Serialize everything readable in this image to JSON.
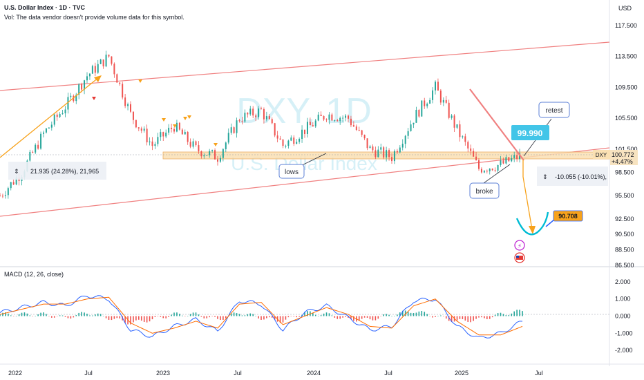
{
  "header": {
    "title": "U.S. Dollar Index · 1D · TVC",
    "volume_note": "Vol: The data vendor doesn't provide volume data for this symbol."
  },
  "currency": "USD",
  "watermark": {
    "symbol": "DXY, 1D",
    "name": "U.S. Dollar Index"
  },
  "macd_label": "MACD (12, 26, close)",
  "price_axis_labels": [
    "117.500",
    "113.500",
    "109.500",
    "105.500",
    "101.500",
    "98.500",
    "95.500",
    "92.500",
    "90.500",
    "88.500",
    "86.500"
  ],
  "macd_axis_labels": [
    "2.000",
    "1.000",
    "0.000",
    "-1.000",
    "-2.000"
  ],
  "time_axis_labels": [
    "2022",
    "Jul",
    "2023",
    "Jul",
    "2024",
    "Jul",
    "2025",
    "Jul"
  ],
  "last_price": {
    "symbol": "DXY",
    "price": "100.772",
    "change": "+4.47%"
  },
  "annotations": {
    "rise_measure": "21.935 (24.28%), 21,965",
    "drop_measure": "-10.055 (-10.01%),",
    "lows": "lows",
    "broke": "broke",
    "retest": "retest",
    "level_box": "99.990",
    "target_box": "90.708"
  },
  "colors": {
    "channel": "#f08080",
    "support_zone": "#fbe0b3",
    "support_border": "#e8a04a",
    "arrow": "#f7a21b",
    "candle_up": "#26a69a",
    "candle_down": "#ef5350",
    "macd_line": "#2962ff",
    "signal_line": "#ff6d00",
    "cup": "#00bcd4",
    "level_box": "#42c5e8",
    "target_box": "#f7a21b"
  },
  "chart_data": [
    {
      "type": "candlestick",
      "title": "U.S. Dollar Index · 1D · TVC",
      "x": [
        "2022-01",
        "2022-03",
        "2022-05",
        "2022-07",
        "2022-09",
        "2022-10",
        "2022-11",
        "2023-01",
        "2023-03",
        "2023-05",
        "2023-07",
        "2023-09",
        "2023-10",
        "2023-12",
        "2024-02",
        "2024-04",
        "2024-06",
        "2024-08",
        "2024-09",
        "2024-11",
        "2025-01",
        "2025-03",
        "2025-04",
        "2025-05",
        "2025-06"
      ],
      "close": [
        95.5,
        98.5,
        103.5,
        107.0,
        111.0,
        113.5,
        106.0,
        102.0,
        104.5,
        101.5,
        100.5,
        105.5,
        106.5,
        102.0,
        104.0,
        106.0,
        105.5,
        101.5,
        100.5,
        105.5,
        109.5,
        104.0,
        99.0,
        99.5,
        100.772
      ],
      "ylim": [
        86.5,
        119.0
      ],
      "y_ticks": [
        117.5,
        113.5,
        109.5,
        105.5,
        101.5,
        98.5,
        95.5,
        92.5,
        90.5,
        88.5,
        86.5
      ],
      "support_zone": [
        100.0,
        101.2
      ],
      "target": 90.708,
      "level": 99.99
    },
    {
      "type": "line",
      "title": "MACD (12, 26, close)",
      "x": [
        "2022-01",
        "2022-03",
        "2022-05",
        "2022-07",
        "2022-09",
        "2022-10",
        "2022-11",
        "2023-01",
        "2023-03",
        "2023-05",
        "2023-07",
        "2023-09",
        "2023-10",
        "2023-12",
        "2024-02",
        "2024-04",
        "2024-06",
        "2024-08",
        "2024-09",
        "2024-11",
        "2025-01",
        "2025-03",
        "2025-04",
        "2025-05",
        "2025-06"
      ],
      "series": [
        {
          "values": [
            0.2,
            0.5,
            0.8,
            0.6,
            1.2,
            1.0,
            -0.8,
            -1.2,
            -0.6,
            -0.2,
            -0.9,
            0.9,
            0.7,
            -0.8,
            0.2,
            0.6,
            -0.1,
            -0.8,
            -0.6,
            0.9,
            1.0,
            -0.6,
            -1.3,
            -1.0,
            -0.3
          ]
        },
        {
          "values": [
            0.1,
            0.4,
            0.7,
            0.7,
            1.0,
            1.1,
            -0.4,
            -1.0,
            -0.7,
            -0.3,
            -0.7,
            0.7,
            0.8,
            -0.5,
            0.0,
            0.5,
            0.1,
            -0.6,
            -0.7,
            0.6,
            1.0,
            -0.3,
            -1.1,
            -1.1,
            -0.6
          ]
        }
      ],
      "histogram": [
        0.1,
        0.1,
        0.1,
        -0.1,
        0.2,
        -0.1,
        -0.4,
        -0.2,
        0.1,
        0.1,
        -0.2,
        0.2,
        -0.1,
        -0.3,
        0.2,
        0.1,
        -0.2,
        -0.2,
        0.1,
        0.3,
        0.0,
        -0.3,
        -0.2,
        0.1,
        0.3
      ],
      "ylim": [
        -2.6,
        2.4
      ],
      "y_ticks": [
        2.0,
        1.0,
        0.0,
        -1.0,
        -2.0
      ]
    }
  ]
}
